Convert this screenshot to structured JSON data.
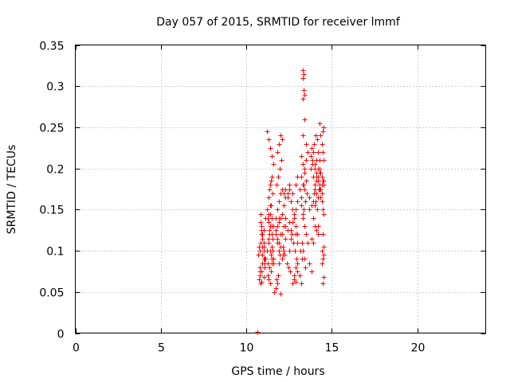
{
  "chart_data": {
    "type": "scatter",
    "title": "Day 057 of 2015, SRMTID for receiver lmmf",
    "xlabel": "GPS time / hours",
    "ylabel": "SRMTID / TECUs",
    "xlim": [
      0,
      24
    ],
    "ylim": [
      0,
      0.35
    ],
    "xticks": [
      0,
      5,
      10,
      15,
      20
    ],
    "xtick_labels": [
      "0",
      "5",
      "10",
      "15",
      "20"
    ],
    "yticks": [
      0,
      0.05,
      0.1,
      0.15,
      0.2,
      0.25,
      0.3,
      0.35
    ],
    "ytick_labels": [
      "0",
      "0.05",
      "0.1",
      "0.15",
      "0.2",
      "0.25",
      "0.3",
      "0.35"
    ],
    "grid": true,
    "marker": "+",
    "color": "#ff0000",
    "series": [
      {
        "name": "SRMTID",
        "x": [
          10.7,
          10.75,
          10.8,
          10.85,
          10.9,
          10.95,
          11.0,
          11.05,
          10.75,
          10.8,
          10.85,
          10.9,
          10.95,
          11.0,
          11.05,
          11.1,
          10.8,
          10.85,
          10.9,
          10.95,
          11.0,
          10.85,
          10.9,
          10.95,
          11.0,
          11.05,
          10.8,
          10.9,
          11.0,
          11.1,
          11.2,
          11.25,
          11.3,
          11.35,
          11.4,
          11.45,
          11.5,
          11.55,
          11.2,
          11.25,
          11.3,
          11.35,
          11.4,
          11.45,
          11.5,
          11.25,
          11.3,
          11.35,
          11.4,
          11.45,
          11.5,
          11.55,
          11.6,
          11.3,
          11.35,
          11.4,
          11.45,
          11.5,
          11.55,
          11.2,
          11.3,
          11.4,
          11.5,
          11.6,
          11.3,
          11.4,
          11.5,
          11.6,
          11.3,
          11.4,
          11.5,
          11.6,
          11.7,
          11.8,
          11.9,
          11.65,
          11.7,
          11.75,
          11.8,
          11.85,
          11.9,
          11.95,
          12.0,
          11.7,
          11.8,
          11.9,
          12.0,
          12.1,
          11.75,
          11.85,
          11.95,
          12.05,
          11.8,
          11.9,
          12.0,
          12.1,
          11.7,
          11.8,
          11.9,
          12.0,
          11.8,
          11.9,
          12.0,
          12.1,
          12.2,
          12.3,
          12.1,
          12.2,
          12.3,
          12.4,
          12.5,
          12.15,
          12.25,
          12.35,
          12.45,
          12.55,
          12.1,
          12.2,
          12.3,
          12.4,
          12.5,
          12.6,
          12.2,
          12.3,
          12.4,
          12.5,
          12.6,
          12.7,
          12.8,
          12.9,
          12.65,
          12.75,
          12.85,
          12.95,
          13.0,
          12.7,
          12.8,
          12.9,
          13.0,
          12.6,
          12.7,
          12.8,
          12.9,
          13.0,
          12.8,
          12.9,
          13.0,
          12.7,
          12.9,
          13.0,
          12.8,
          12.9,
          13.1,
          13.2,
          13.3,
          13.4,
          13.5,
          13.1,
          13.2,
          13.3,
          13.4,
          13.5,
          13.6,
          13.15,
          13.25,
          13.35,
          13.45,
          13.55,
          13.2,
          13.3,
          13.4,
          13.5,
          13.6,
          13.2,
          13.3,
          13.4,
          13.5,
          13.3,
          13.35,
          13.3,
          13.35,
          13.3,
          13.35,
          13.4,
          13.3,
          13.4,
          13.45,
          13.1,
          13.2,
          13.3,
          13.4,
          13.7,
          13.8,
          13.9,
          14.0,
          14.1,
          14.2,
          13.75,
          13.85,
          13.95,
          14.05,
          14.15,
          14.25,
          13.7,
          13.8,
          13.9,
          14.0,
          14.1,
          14.2,
          13.8,
          13.9,
          14.0,
          14.1,
          14.2,
          14.3,
          13.75,
          13.85,
          13.95,
          14.05,
          14.15,
          13.8,
          13.9,
          14.0,
          14.1,
          14.2,
          13.9,
          14.0,
          14.1,
          14.2,
          14.3,
          14.0,
          14.1,
          14.2,
          14.3,
          14.35,
          14.4,
          14.45,
          14.5,
          14.3,
          14.35,
          14.4,
          14.45,
          14.5,
          14.3,
          14.35,
          14.4,
          14.45,
          14.5,
          14.3,
          14.35,
          14.4,
          14.45,
          14.5,
          14.4,
          14.5,
          14.45,
          14.5,
          14.4,
          14.45,
          14.5,
          14.35,
          14.4,
          14.5,
          14.45,
          10.65,
          12.0,
          11.5,
          11.0,
          12.5,
          13.0,
          13.5,
          12.3,
          11.9,
          13.7,
          14.2,
          12.9,
          11.3,
          10.95,
          12.15,
          13.25
        ],
        "y": [
          0.095,
          0.105,
          0.08,
          0.11,
          0.075,
          0.12,
          0.1,
          0.085,
          0.065,
          0.07,
          0.06,
          0.13,
          0.115,
          0.125,
          0.09,
          0.14,
          0.1,
          0.135,
          0.12,
          0.085,
          0.11,
          0.145,
          0.125,
          0.095,
          0.105,
          0.08,
          0.075,
          0.062,
          0.068,
          0.09,
          0.1,
          0.085,
          0.11,
          0.12,
          0.13,
          0.095,
          0.105,
          0.115,
          0.15,
          0.14,
          0.135,
          0.125,
          0.145,
          0.155,
          0.13,
          0.07,
          0.065,
          0.08,
          0.06,
          0.075,
          0.09,
          0.1,
          0.085,
          0.165,
          0.175,
          0.18,
          0.185,
          0.19,
          0.17,
          0.245,
          0.235,
          0.225,
          0.215,
          0.205,
          0.11,
          0.1,
          0.12,
          0.09,
          0.145,
          0.155,
          0.14,
          0.13,
          0.12,
          0.11,
          0.1,
          0.05,
          0.055,
          0.065,
          0.06,
          0.07,
          0.085,
          0.095,
          0.105,
          0.14,
          0.15,
          0.16,
          0.17,
          0.175,
          0.18,
          0.19,
          0.2,
          0.21,
          0.22,
          0.23,
          0.24,
          0.235,
          0.125,
          0.115,
          0.135,
          0.12,
          0.13,
          0.11,
          0.14,
          0.09,
          0.1,
          0.115,
          0.145,
          0.155,
          0.165,
          0.17,
          0.175,
          0.105,
          0.095,
          0.085,
          0.08,
          0.075,
          0.12,
          0.13,
          0.14,
          0.125,
          0.135,
          0.115,
          0.17,
          0.175,
          0.165,
          0.18,
          0.16,
          0.15,
          0.14,
          0.13,
          0.12,
          0.11,
          0.1,
          0.09,
          0.085,
          0.06,
          0.07,
          0.08,
          0.075,
          0.125,
          0.135,
          0.145,
          0.13,
          0.12,
          0.14,
          0.15,
          0.16,
          0.17,
          0.18,
          0.19,
          0.065,
          0.062,
          0.07,
          0.215,
          0.205,
          0.195,
          0.185,
          0.175,
          0.165,
          0.14,
          0.13,
          0.12,
          0.11,
          0.1,
          0.09,
          0.15,
          0.16,
          0.17,
          0.155,
          0.145,
          0.2,
          0.21,
          0.22,
          0.19,
          0.18,
          0.26,
          0.23,
          0.24,
          0.18,
          0.32,
          0.315,
          0.31,
          0.295,
          0.29,
          0.285,
          0.175,
          0.08,
          0.07,
          0.06,
          0.1,
          0.09,
          0.085,
          0.075,
          0.19,
          0.2,
          0.21,
          0.22,
          0.215,
          0.205,
          0.17,
          0.16,
          0.15,
          0.175,
          0.165,
          0.155,
          0.14,
          0.13,
          0.125,
          0.12,
          0.115,
          0.11,
          0.18,
          0.185,
          0.19,
          0.195,
          0.2,
          0.21,
          0.23,
          0.24,
          0.235,
          0.225,
          0.22,
          0.175,
          0.17,
          0.165,
          0.16,
          0.155,
          0.19,
          0.2,
          0.21,
          0.205,
          0.195,
          0.185,
          0.18,
          0.175,
          0.17,
          0.245,
          0.25,
          0.255,
          0.24,
          0.23,
          0.22,
          0.21,
          0.2,
          0.195,
          0.19,
          0.185,
          0.18,
          0.175,
          0.165,
          0.16,
          0.15,
          0.145,
          0.1,
          0.105,
          0.09,
          0.095,
          0.085,
          0.06,
          0.068,
          0.175,
          0.18,
          0.185,
          0.12,
          0.001,
          0.048,
          0.085,
          0.09,
          0.1,
          0.11,
          0.12,
          0.13,
          0.14,
          0.15,
          0.13,
          0.12,
          0.115,
          0.105,
          0.095,
          0.11
        ]
      }
    ]
  }
}
